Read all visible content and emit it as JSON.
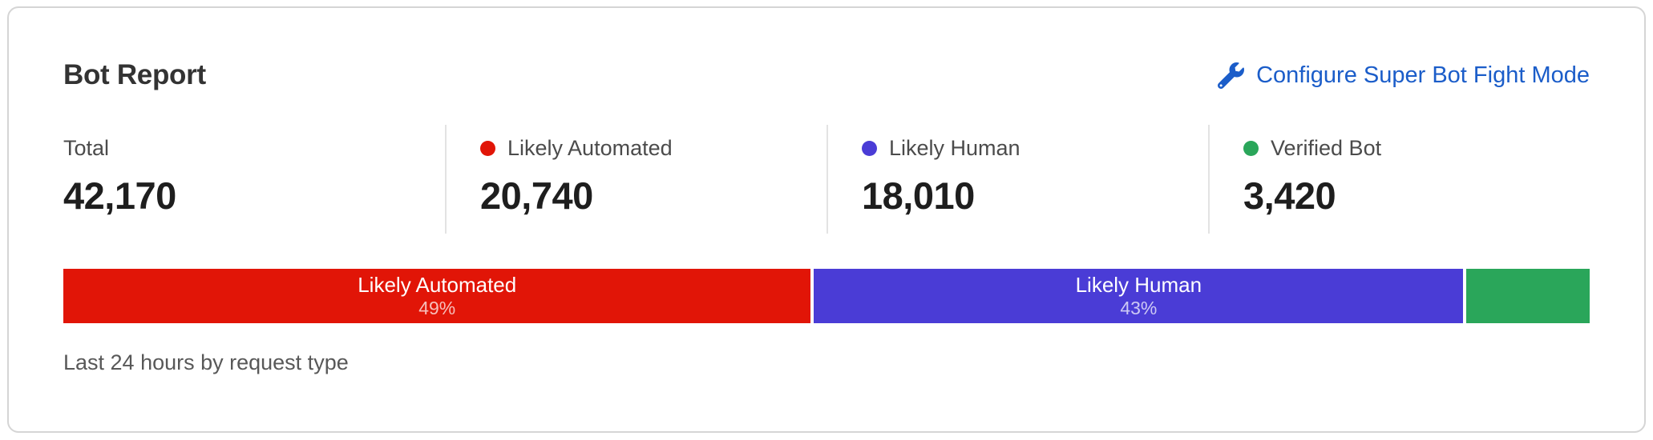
{
  "card": {
    "title": "Bot Report",
    "link_label": "Configure Super Bot Fight Mode",
    "link_color": "#1b5dc9",
    "caption": "Last 24 hours by request type"
  },
  "stats": [
    {
      "label": "Total",
      "value": "42,170",
      "dot_color": null
    },
    {
      "label": "Likely Automated",
      "value": "20,740",
      "dot_color": "#e11507"
    },
    {
      "label": "Likely Human",
      "value": "18,010",
      "dot_color": "#4a3cd6"
    },
    {
      "label": "Verified Bot",
      "value": "3,420",
      "dot_color": "#2aa65a"
    }
  ],
  "chart_data": {
    "type": "bar",
    "orientation": "horizontal-stacked",
    "title": "Bot Report",
    "subtitle": "Last 24 hours by request type",
    "total": 42170,
    "legend_position": "top",
    "segments": [
      {
        "label": "Likely Automated",
        "value": 20740,
        "percent_label": "49%",
        "color": "#e11507"
      },
      {
        "label": "Likely Human",
        "value": 18010,
        "percent_label": "43%",
        "color": "#4a3cd6"
      },
      {
        "label": "Verified Bot",
        "value": 3420,
        "percent_label": "",
        "color": "#2aa65a"
      }
    ]
  }
}
